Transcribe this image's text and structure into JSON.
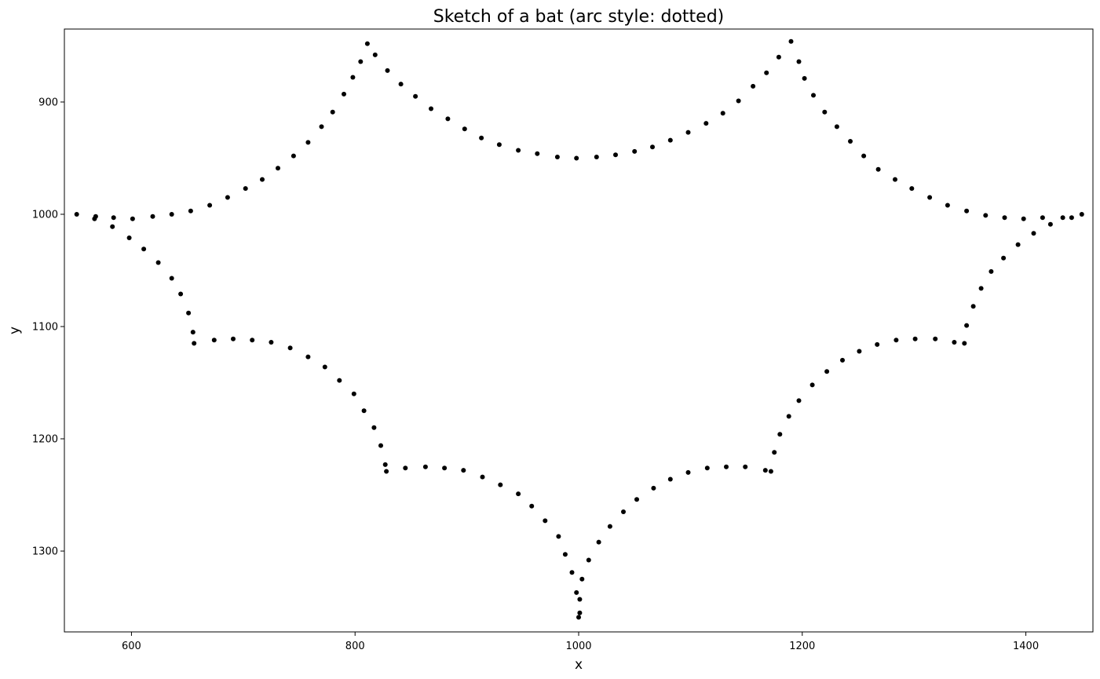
{
  "chart_data": {
    "type": "scatter",
    "title": "Sketch of a bat (arc style: dotted)",
    "xlabel": "x",
    "ylabel": "y",
    "xlim": [
      540,
      1460
    ],
    "ylim": [
      1372,
      835
    ],
    "y_inverted": true,
    "x_ticks": [
      600,
      800,
      1000,
      1200,
      1400
    ],
    "y_ticks": [
      900,
      1000,
      1100,
      1200,
      1300
    ],
    "grid": false,
    "marker_color": "#000000",
    "points": [
      [
        551,
        1000
      ],
      [
        567,
        1004
      ],
      [
        568,
        1002
      ],
      [
        584,
        1003
      ],
      [
        601,
        1004
      ],
      [
        619,
        1002
      ],
      [
        636,
        1000
      ],
      [
        653,
        997
      ],
      [
        670,
        992
      ],
      [
        686,
        985
      ],
      [
        702,
        977
      ],
      [
        717,
        969
      ],
      [
        731,
        959
      ],
      [
        745,
        948
      ],
      [
        758,
        936
      ],
      [
        770,
        922
      ],
      [
        780,
        909
      ],
      [
        790,
        893
      ],
      [
        798,
        878
      ],
      [
        805,
        864
      ],
      [
        811,
        848
      ],
      [
        818,
        858
      ],
      [
        829,
        872
      ],
      [
        841,
        884
      ],
      [
        854,
        895
      ],
      [
        868,
        906
      ],
      [
        883,
        915
      ],
      [
        898,
        924
      ],
      [
        913,
        932
      ],
      [
        929,
        938
      ],
      [
        946,
        943
      ],
      [
        963,
        946
      ],
      [
        981,
        949
      ],
      [
        998,
        950
      ],
      [
        1016,
        949
      ],
      [
        1033,
        947
      ],
      [
        1050,
        944
      ],
      [
        1066,
        940
      ],
      [
        1082,
        934
      ],
      [
        1098,
        927
      ],
      [
        1114,
        919
      ],
      [
        1129,
        910
      ],
      [
        1143,
        899
      ],
      [
        1156,
        886
      ],
      [
        1168,
        874
      ],
      [
        1179,
        860
      ],
      [
        1190,
        846
      ],
      [
        1197,
        864
      ],
      [
        1202,
        879
      ],
      [
        1210,
        894
      ],
      [
        1220,
        909
      ],
      [
        1231,
        922
      ],
      [
        1243,
        935
      ],
      [
        1255,
        948
      ],
      [
        1268,
        960
      ],
      [
        1283,
        969
      ],
      [
        1298,
        977
      ],
      [
        1314,
        985
      ],
      [
        1330,
        992
      ],
      [
        1347,
        997
      ],
      [
        1364,
        1001
      ],
      [
        1381,
        1003
      ],
      [
        1398,
        1004
      ],
      [
        1415,
        1003
      ],
      [
        1433,
        1003
      ],
      [
        1441,
        1003
      ],
      [
        1450,
        1000
      ],
      [
        583,
        1011
      ],
      [
        598,
        1021
      ],
      [
        611,
        1031
      ],
      [
        624,
        1043
      ],
      [
        636,
        1057
      ],
      [
        644,
        1071
      ],
      [
        651,
        1088
      ],
      [
        655,
        1105
      ],
      [
        656,
        1115
      ],
      [
        674,
        1112
      ],
      [
        691,
        1111
      ],
      [
        708,
        1112
      ],
      [
        725,
        1114
      ],
      [
        742,
        1119
      ],
      [
        758,
        1127
      ],
      [
        773,
        1136
      ],
      [
        786,
        1148
      ],
      [
        799,
        1160
      ],
      [
        808,
        1175
      ],
      [
        817,
        1190
      ],
      [
        823,
        1206
      ],
      [
        827,
        1223
      ],
      [
        828,
        1229
      ],
      [
        845,
        1226
      ],
      [
        863,
        1225
      ],
      [
        880,
        1226
      ],
      [
        897,
        1228
      ],
      [
        914,
        1234
      ],
      [
        930,
        1241
      ],
      [
        946,
        1249
      ],
      [
        958,
        1260
      ],
      [
        970,
        1273
      ],
      [
        982,
        1287
      ],
      [
        988,
        1303
      ],
      [
        994,
        1319
      ],
      [
        998,
        1337
      ],
      [
        1001,
        1343
      ],
      [
        1001,
        1355
      ],
      [
        1000,
        1359
      ],
      [
        1003,
        1325
      ],
      [
        1009,
        1308
      ],
      [
        1018,
        1292
      ],
      [
        1028,
        1278
      ],
      [
        1040,
        1265
      ],
      [
        1052,
        1254
      ],
      [
        1067,
        1244
      ],
      [
        1082,
        1236
      ],
      [
        1098,
        1230
      ],
      [
        1115,
        1226
      ],
      [
        1132,
        1225
      ],
      [
        1149,
        1225
      ],
      [
        1167,
        1228
      ],
      [
        1172,
        1229
      ],
      [
        1175,
        1212
      ],
      [
        1180,
        1196
      ],
      [
        1188,
        1180
      ],
      [
        1197,
        1166
      ],
      [
        1209,
        1152
      ],
      [
        1222,
        1140
      ],
      [
        1236,
        1130
      ],
      [
        1251,
        1122
      ],
      [
        1267,
        1116
      ],
      [
        1284,
        1112
      ],
      [
        1301,
        1111
      ],
      [
        1319,
        1111
      ],
      [
        1336,
        1114
      ],
      [
        1345,
        1115
      ],
      [
        1347,
        1099
      ],
      [
        1353,
        1082
      ],
      [
        1360,
        1066
      ],
      [
        1369,
        1051
      ],
      [
        1380,
        1039
      ],
      [
        1393,
        1027
      ],
      [
        1407,
        1017
      ],
      [
        1422,
        1009
      ]
    ]
  }
}
